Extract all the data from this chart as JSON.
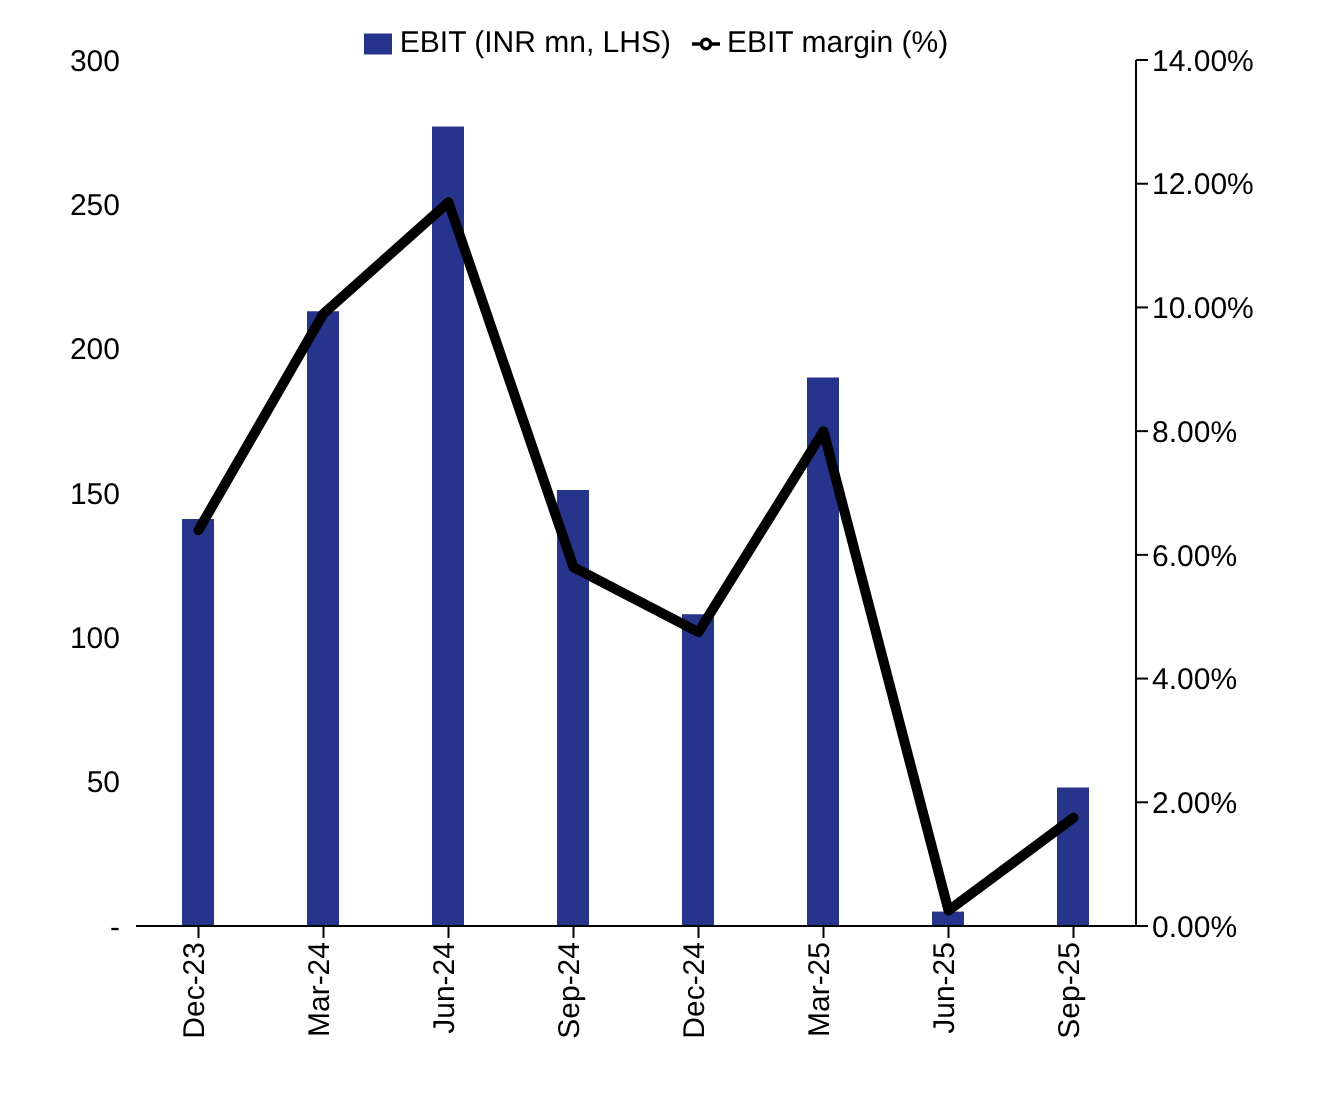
{
  "chart_data": {
    "type": "bar",
    "categories": [
      "Dec-23",
      "Mar-24",
      "Jun-24",
      "Sep-24",
      "Dec-24",
      "Mar-25",
      "Jun-25",
      "Sep-25"
    ],
    "series": [
      {
        "name": "EBIT (INR mn, LHS)",
        "color": "#27348b",
        "values": [
          141,
          213,
          277,
          151,
          108,
          190,
          5,
          48
        ]
      },
      {
        "name": "EBIT margin (%)",
        "type": "line",
        "axis": "y2",
        "color": "#000000",
        "values": [
          6.4,
          9.9,
          11.7,
          5.8,
          4.75,
          8.0,
          0.25,
          1.75
        ]
      }
    ],
    "ylim": [
      0,
      300
    ],
    "yticks": [
      {
        "value": 0,
        "label": "-"
      },
      50,
      100,
      150,
      200,
      250,
      300
    ],
    "y2lim": [
      0,
      14
    ],
    "y2ticks": [
      {
        "value": 0,
        "label": "0.00%"
      },
      {
        "value": 2,
        "label": "2.00%"
      },
      {
        "value": 4,
        "label": "4.00%"
      },
      {
        "value": 6,
        "label": "6.00%"
      },
      {
        "value": 8,
        "label": "8.00%"
      },
      {
        "value": 10,
        "label": "10.00%"
      },
      {
        "value": 12,
        "label": "12.00%"
      },
      {
        "value": 14,
        "label": "14.00%"
      }
    ],
    "legend": "top",
    "marker": "none",
    "line_style": "solid",
    "grid": false
  }
}
